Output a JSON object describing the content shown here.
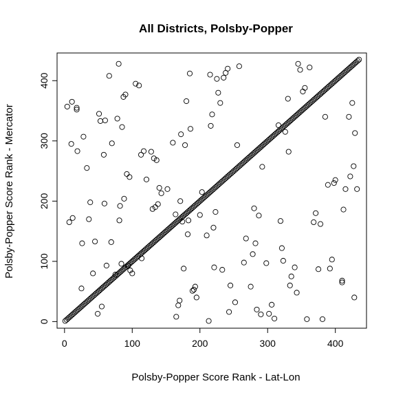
{
  "chart_data": {
    "type": "scatter",
    "title": "All Districts, Polsby-Popper",
    "xlabel": "Polsby-Popper Score Rank - Lat-Lon",
    "ylabel": "Polsby-Popper Score Rank - Mercator",
    "xlim": [
      -11,
      446
    ],
    "ylim": [
      -11,
      446
    ],
    "xticks": [
      0,
      100,
      200,
      300,
      400
    ],
    "yticks": [
      0,
      100,
      200,
      300,
      400
    ],
    "grid": false,
    "marker": "open-circle",
    "diagonal_series": {
      "description_of_pattern": "dense points along y = x",
      "from": 1,
      "to": 435,
      "step": 2
    },
    "off_diagonal_points": [
      [
        4,
        357
      ],
      [
        11,
        365
      ],
      [
        18,
        355
      ],
      [
        18,
        352
      ],
      [
        7,
        165
      ],
      [
        12,
        172
      ],
      [
        10,
        295
      ],
      [
        19,
        283
      ],
      [
        25,
        55
      ],
      [
        26,
        130
      ],
      [
        28,
        307
      ],
      [
        33,
        255
      ],
      [
        36,
        170
      ],
      [
        38,
        198
      ],
      [
        42,
        80
      ],
      [
        45,
        133
      ],
      [
        49,
        13
      ],
      [
        51,
        345
      ],
      [
        53,
        333
      ],
      [
        55,
        25
      ],
      [
        58,
        277
      ],
      [
        59,
        196
      ],
      [
        60,
        334
      ],
      [
        62,
        93
      ],
      [
        66,
        408
      ],
      [
        69,
        132
      ],
      [
        70,
        296
      ],
      [
        75,
        78
      ],
      [
        78,
        337
      ],
      [
        80,
        428
      ],
      [
        81,
        168
      ],
      [
        82,
        192
      ],
      [
        84,
        96
      ],
      [
        85,
        323
      ],
      [
        87,
        373
      ],
      [
        88,
        204
      ],
      [
        90,
        377
      ],
      [
        92,
        245
      ],
      [
        94,
        93
      ],
      [
        96,
        240
      ],
      [
        97,
        85
      ],
      [
        100,
        80
      ],
      [
        105,
        395
      ],
      [
        110,
        392
      ],
      [
        113,
        277
      ],
      [
        114,
        105
      ],
      [
        117,
        283
      ],
      [
        121,
        236
      ],
      [
        128,
        282
      ],
      [
        130,
        187
      ],
      [
        132,
        271
      ],
      [
        134,
        190
      ],
      [
        136,
        268
      ],
      [
        138,
        195
      ],
      [
        140,
        222
      ],
      [
        143,
        213
      ],
      [
        152,
        220
      ],
      [
        160,
        297
      ],
      [
        164,
        178
      ],
      [
        165,
        8
      ],
      [
        168,
        27
      ],
      [
        170,
        35
      ],
      [
        171,
        200
      ],
      [
        172,
        311
      ],
      [
        174,
        166
      ],
      [
        176,
        88
      ],
      [
        178,
        293
      ],
      [
        180,
        366
      ],
      [
        182,
        145
      ],
      [
        183,
        168
      ],
      [
        185,
        412
      ],
      [
        186,
        320
      ],
      [
        189,
        51
      ],
      [
        191,
        53
      ],
      [
        193,
        58
      ],
      [
        195,
        40
      ],
      [
        200,
        177
      ],
      [
        203,
        215
      ],
      [
        210,
        143
      ],
      [
        213,
        1
      ],
      [
        215,
        410
      ],
      [
        216,
        325
      ],
      [
        218,
        344
      ],
      [
        220,
        156
      ],
      [
        221,
        90
      ],
      [
        223,
        182
      ],
      [
        225,
        403
      ],
      [
        227,
        380
      ],
      [
        230,
        363
      ],
      [
        233,
        86
      ],
      [
        235,
        405
      ],
      [
        238,
        413
      ],
      [
        241,
        420
      ],
      [
        243,
        16
      ],
      [
        245,
        60
      ],
      [
        252,
        32
      ],
      [
        255,
        293
      ],
      [
        258,
        424
      ],
      [
        265,
        98
      ],
      [
        268,
        138
      ],
      [
        275,
        58
      ],
      [
        278,
        112
      ],
      [
        280,
        188
      ],
      [
        282,
        130
      ],
      [
        284,
        20
      ],
      [
        287,
        176
      ],
      [
        290,
        12
      ],
      [
        292,
        257
      ],
      [
        298,
        97
      ],
      [
        302,
        13
      ],
      [
        306,
        28
      ],
      [
        310,
        5
      ],
      [
        316,
        326
      ],
      [
        319,
        167
      ],
      [
        321,
        122
      ],
      [
        323,
        101
      ],
      [
        326,
        315
      ],
      [
        330,
        370
      ],
      [
        331,
        282
      ],
      [
        333,
        60
      ],
      [
        335,
        75
      ],
      [
        340,
        90
      ],
      [
        343,
        48
      ],
      [
        345,
        428
      ],
      [
        348,
        418
      ],
      [
        352,
        382
      ],
      [
        355,
        388
      ],
      [
        358,
        4
      ],
      [
        362,
        422
      ],
      [
        368,
        165
      ],
      [
        371,
        180
      ],
      [
        375,
        87
      ],
      [
        378,
        162
      ],
      [
        381,
        4
      ],
      [
        385,
        340
      ],
      [
        389,
        227
      ],
      [
        392,
        88
      ],
      [
        395,
        103
      ],
      [
        398,
        230
      ],
      [
        400,
        235
      ],
      [
        410,
        68
      ],
      [
        410,
        65
      ],
      [
        412,
        186
      ],
      [
        415,
        220
      ],
      [
        420,
        340
      ],
      [
        422,
        241
      ],
      [
        425,
        363
      ],
      [
        427,
        258
      ],
      [
        428,
        40
      ],
      [
        429,
        313
      ],
      [
        432,
        220
      ]
    ]
  }
}
